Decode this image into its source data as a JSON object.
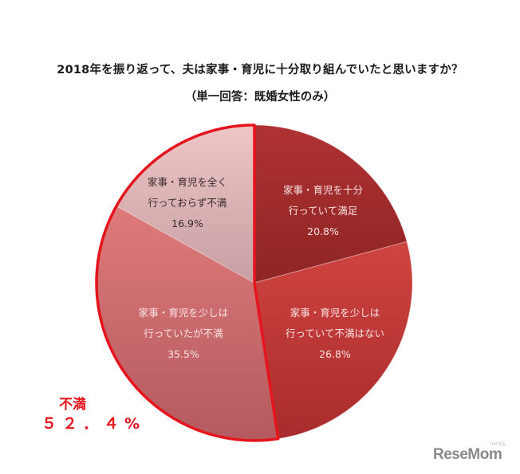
{
  "header": {
    "title": "2018年を振り返って、夫は家事・育児に十分取り組んでいたと思いますか？",
    "subtitle": "（単一回答：既婚女性のみ）"
  },
  "slices": [
    {
      "line1": "家事・育児を十分",
      "line2": "行っていて満足",
      "pct": "20.8%",
      "color": "#a82b2b"
    },
    {
      "line1": "家事・育児を少しは",
      "line2": "行っていて不満はない",
      "pct": "26.8%",
      "color": "#c93a38"
    },
    {
      "line1": "家事・育児を少しは",
      "line2": "行っていたが不満",
      "pct": "35.5%",
      "color": "#d76e70"
    },
    {
      "line1": "家事・育児を全く",
      "line2": "行っておらず不満",
      "pct": "16.9%",
      "color": "#e8b7b9"
    }
  ],
  "callout": {
    "label": "不満",
    "value": "５２．４%",
    "color": "#e6141c"
  },
  "watermark": {
    "brand": "ReseMom",
    "sub": "リセマム"
  },
  "chart_data": {
    "type": "pie",
    "title": "2018年を振り返って、夫は家事・育児に十分取り組んでいたと思いますか？",
    "subtitle": "（単一回答：既婚女性のみ）",
    "categories": [
      "家事・育児を十分行っていて満足",
      "家事・育児を少しは行っていて不満はない",
      "家事・育児を少しは行っていたが不満",
      "家事・育児を全く行っておらず不満"
    ],
    "values": [
      20.8,
      26.8,
      35.5,
      16.9
    ],
    "unit": "%",
    "start_angle": "12 o'clock, clockwise",
    "annotations": [
      {
        "text": "不満 52.4%",
        "covers": [
          "家事・育児を少しは行っていたが不満",
          "家事・育児を全く行っておらず不満"
        ],
        "highlight": "red outline"
      }
    ],
    "legend": "none (labels inside slices)"
  }
}
